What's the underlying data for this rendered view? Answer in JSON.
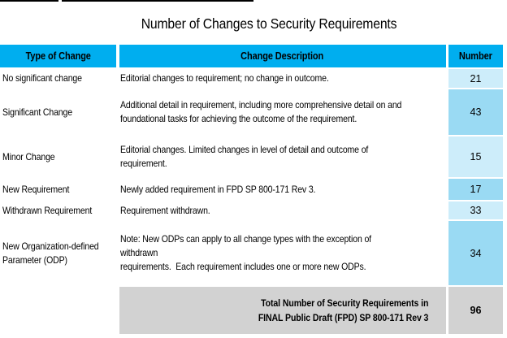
{
  "title": "Number of Changes to Security Requirements",
  "table": {
    "headers": {
      "type": "Type of Change",
      "description": "Change Description",
      "number": "Number"
    },
    "rows": [
      {
        "type": "No significant change",
        "description": "Editorial changes to requirement; no change in outcome.",
        "number": "21",
        "shade": "light"
      },
      {
        "type": "Significant Change",
        "description": "Additional detail in requirement, including more comprehensive detail on and\nfoundational tasks for achieving the outcome of the requirement.",
        "number": "43",
        "shade": "medium"
      },
      {
        "type": "Minor Change",
        "description": "Editorial changes. Limited changes in level of detail and outcome of requirement.",
        "number": "15",
        "shade": "light"
      },
      {
        "type": "New Requirement",
        "description": "Newly added requirement in FPD SP 800-171 Rev 3.",
        "number": "17",
        "shade": "medium"
      },
      {
        "type": "Withdrawn Requirement",
        "description": "Requirement withdrawn.",
        "number": "33",
        "shade": "light"
      },
      {
        "type": "New Organization-defined\nParameter (ODP)",
        "description": "Note: New ODPs can apply to all change types with the exception of withdrawn\nrequirements.  Each requirement includes one or more new ODPs.",
        "number": "34",
        "shade": "medium"
      }
    ],
    "total": {
      "label": "Total Number of Security Requirements in\nFINAL Public Draft (FPD) SP 800-171 Rev 3",
      "number": "96"
    }
  },
  "colors": {
    "header_bg": "#00AEEF",
    "number_cell_light": "#CDEDFA",
    "number_cell_medium": "#9ADAF3",
    "total_bg": "#D2D2D2",
    "text": "#000000",
    "page_bg": "#FFFFFF"
  }
}
